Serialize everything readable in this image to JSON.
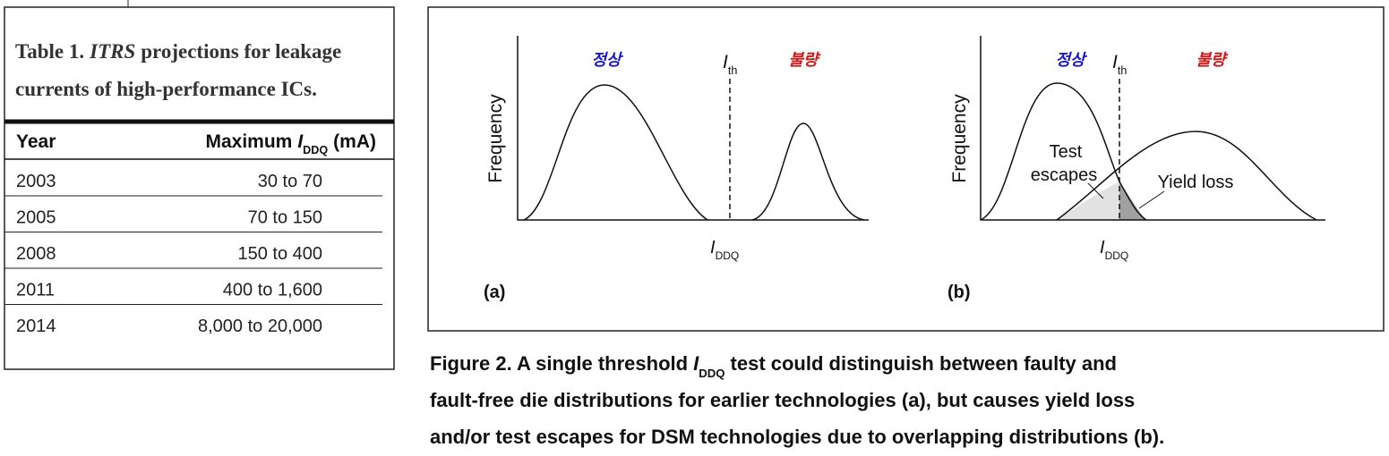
{
  "table": {
    "caption_prefix": "Table 1.",
    "caption_italic": "ITRS",
    "caption_rest_line1": "projections for leakage",
    "caption_line2": "currents of high-performance ICs.",
    "header_year": "Year",
    "header_max": [
      "Maximum",
      "I",
      "DDQ",
      "(mA)"
    ],
    "rows": [
      [
        "2003",
        "30 to 70"
      ],
      [
        "2005",
        "70 to 150"
      ],
      [
        "2008",
        "150 to 400"
      ],
      [
        "2011",
        "400 to 1,600"
      ],
      [
        "2014",
        "8,000 to 20,000"
      ]
    ]
  },
  "figure": {
    "panel_a": {
      "normal": "정상",
      "faulty": "불량",
      "threshold": [
        "I",
        "th"
      ],
      "y_label": "Frequency",
      "x_label": [
        "I",
        "DDQ"
      ],
      "tag": "(a)"
    },
    "panel_b": {
      "normal": "정상",
      "faulty": "불량",
      "threshold": [
        "I",
        "th"
      ],
      "y_label": "Frequency",
      "x_label": [
        "I",
        "DDQ"
      ],
      "escapes": [
        "Test",
        "escapes"
      ],
      "yield_loss": "Yield loss",
      "tag": "(b)"
    },
    "caption": {
      "line1": [
        "Figure 2. A single threshold",
        "I",
        "DDQ",
        "test could distinguish between faulty and"
      ],
      "line2": "fault-free die distributions for earlier technologies (a), but causes yield loss",
      "line3": "and/or test escapes for DSM technologies due to overlapping distributions (b)."
    }
  }
}
